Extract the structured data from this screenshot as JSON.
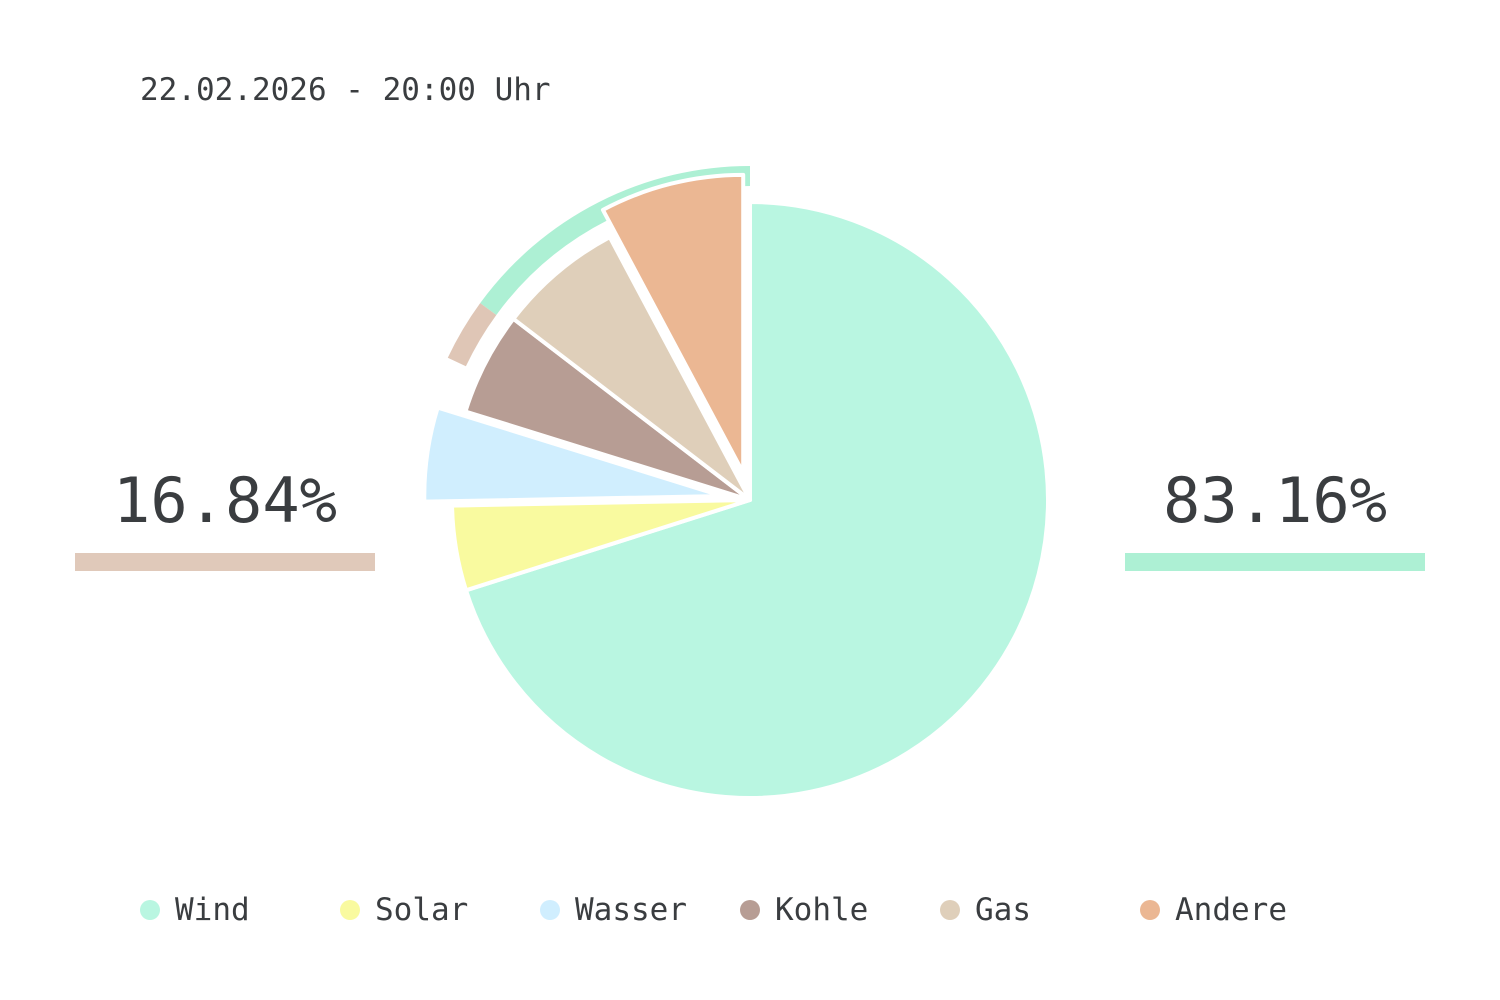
{
  "header": {
    "timestamp": "22.02.2026 - 20:00 Uhr"
  },
  "summary": {
    "left": {
      "value": "16.84%",
      "color": "#e0c9ba"
    },
    "right": {
      "value": "83.16%",
      "color": "#adf0d4"
    }
  },
  "colors": {
    "outer_ring_left": "#dfc6b6",
    "outer_ring_right": "#adf0d4",
    "slice_border": "#ffffff"
  },
  "chart_data": {
    "type": "pie",
    "title": "",
    "categories": [
      "Wind",
      "Solar",
      "Wasser",
      "Kohle",
      "Gas",
      "Andere"
    ],
    "values": [
      70.1,
      4.6,
      5.1,
      5.6,
      6.8,
      7.8
    ],
    "exploded": [
      false,
      false,
      true,
      false,
      false,
      true
    ],
    "colors": [
      "#b9f6e1",
      "#f9fa9f",
      "#d0eefe",
      "#b79d94",
      "#dfcfba",
      "#ebb793"
    ],
    "outer_ring": {
      "values": [
        83.16,
        16.84
      ],
      "colors": [
        "#adf0d4",
        "#dfc6b6"
      ],
      "visible_span_percent": 18
    },
    "legend": {
      "placement": "bottom",
      "items": [
        "Wind",
        "Solar",
        "Wasser",
        "Kohle",
        "Gas",
        "Andere"
      ]
    }
  }
}
